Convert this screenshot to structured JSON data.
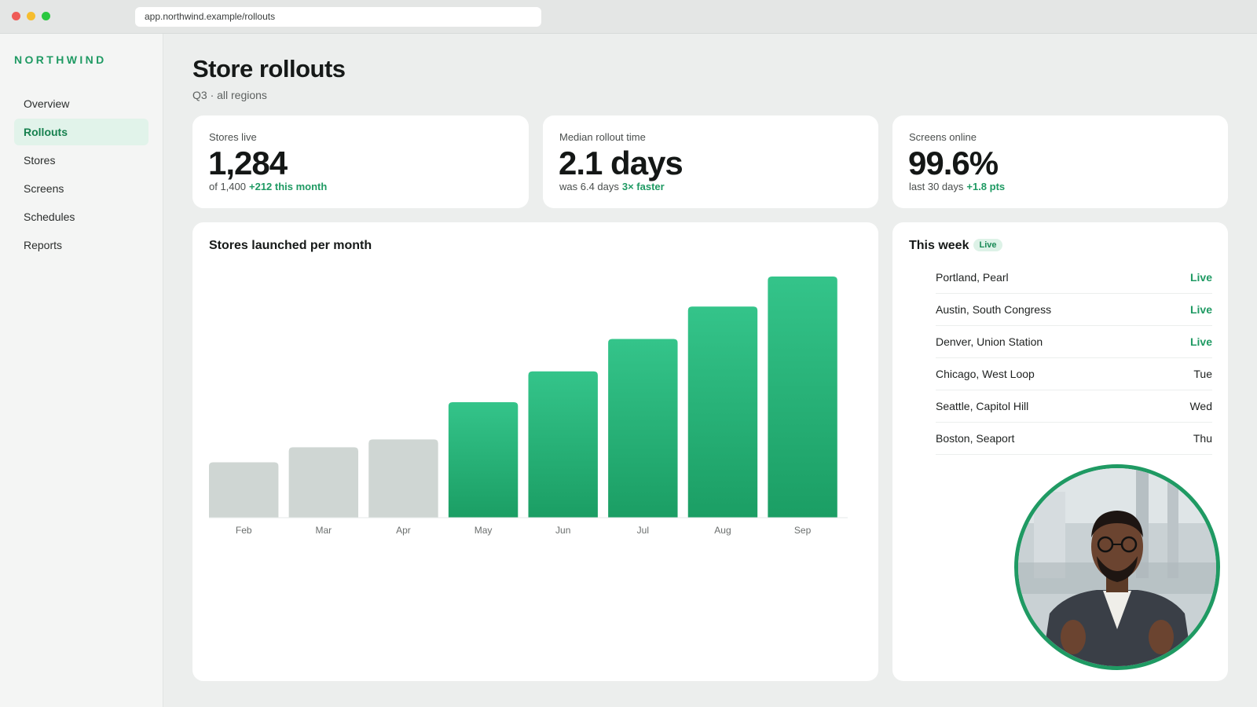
{
  "browser": {
    "url": "app.northwind.example/rollouts"
  },
  "sidebar": {
    "brand": "NORTHWIND",
    "items": [
      {
        "label": "Overview",
        "active": false
      },
      {
        "label": "Rollouts",
        "active": true
      },
      {
        "label": "Stores",
        "active": false
      },
      {
        "label": "Screens",
        "active": false
      },
      {
        "label": "Schedules",
        "active": false
      },
      {
        "label": "Reports",
        "active": false
      }
    ]
  },
  "header": {
    "title": "Store rollouts",
    "subtitle": "Q3 · all regions"
  },
  "stats": [
    {
      "label": "Stores live",
      "value": "1,284",
      "sub": "of 1,400",
      "delta": "+212 this month"
    },
    {
      "label": "Median rollout time",
      "value": "2.1 days",
      "sub": "was 6.4 days",
      "delta": "3× faster"
    },
    {
      "label": "Screens online",
      "value": "99.6%",
      "sub": "last 30 days",
      "delta": "+1.8 pts"
    }
  ],
  "chart_panel": {
    "title": "Stores launched per month"
  },
  "chart_data": {
    "type": "bar",
    "title": "Stores launched per month",
    "categories": [
      "Feb",
      "Mar",
      "Apr",
      "May",
      "Jun",
      "Jul",
      "Aug",
      "Sep"
    ],
    "values": [
      70,
      89,
      99,
      146,
      185,
      226,
      267,
      305
    ],
    "highlight_from_index": 3,
    "ylim": [
      0,
      310
    ],
    "grid": false,
    "colors": {
      "muted": "#cfd6d3",
      "accent_top": "#34c48a",
      "accent_bottom": "#1b9e64"
    }
  },
  "this_week": {
    "title": "This week",
    "badge": "Live",
    "rows": [
      {
        "name": "Portland, Pearl",
        "status": "Live",
        "live": true
      },
      {
        "name": "Austin, South Congress",
        "status": "Live",
        "live": true
      },
      {
        "name": "Denver, Union Station",
        "status": "Live",
        "live": true
      },
      {
        "name": "Chicago, West Loop",
        "status": "Tue",
        "live": false
      },
      {
        "name": "Seattle, Capitol Hill",
        "status": "Wed",
        "live": false
      },
      {
        "name": "Boston, Seaport",
        "status": "Thu",
        "live": false
      }
    ]
  },
  "colors": {
    "accent": "#1f9a63",
    "background": "#eceeed",
    "card": "#ffffff"
  }
}
